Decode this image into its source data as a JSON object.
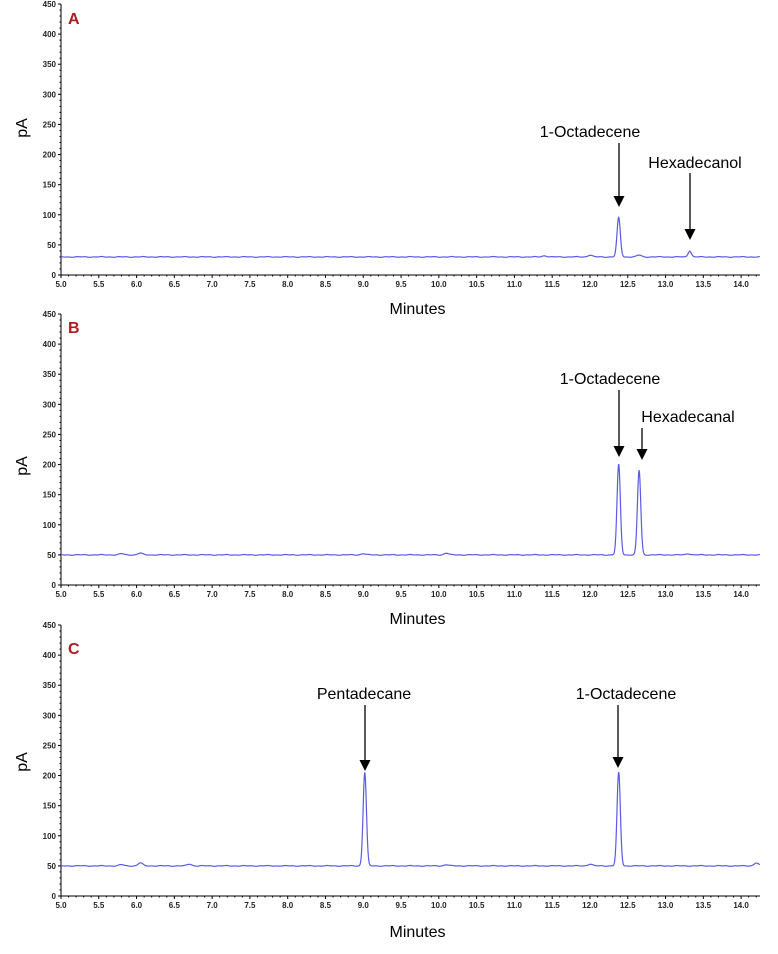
{
  "colors": {
    "trace": "#5a5ae6",
    "axis": "#000000",
    "panel_letter": "#b01c1c"
  },
  "chart_data": [
    {
      "type": "line",
      "panel_label": "A",
      "xlabel": "Minutes",
      "ylabel": "pA",
      "xlim": [
        5.0,
        14.25
      ],
      "ylim": [
        0,
        450
      ],
      "xticks": [
        "5.0",
        "5.5",
        "6.0",
        "6.5",
        "7.0",
        "7.5",
        "8.0",
        "8.5",
        "9.0",
        "9.5",
        "10.0",
        "10.5",
        "11.0",
        "11.5",
        "12.0",
        "12.5",
        "13.0",
        "13.5",
        "14.0"
      ],
      "yticks": [
        "0",
        "50",
        "100",
        "150",
        "200",
        "250",
        "300",
        "350",
        "400",
        "450"
      ],
      "baseline": 30,
      "peaks": [
        {
          "x": 12.38,
          "y": 95,
          "label": "1-Octadecene"
        },
        {
          "x": 13.32,
          "y": 40,
          "label": "Hexadecanol"
        }
      ],
      "minor_peaks": [
        {
          "x": 11.4,
          "y": 32
        },
        {
          "x": 12.0,
          "y": 33
        },
        {
          "x": 12.65,
          "y": 33
        }
      ]
    },
    {
      "type": "line",
      "panel_label": "B",
      "xlabel": "Minutes",
      "ylabel": "pA",
      "xlim": [
        5.0,
        14.25
      ],
      "ylim": [
        0,
        450
      ],
      "xticks": [
        "5.0",
        "5.5",
        "6.0",
        "6.5",
        "7.0",
        "7.5",
        "8.0",
        "8.5",
        "9.0",
        "9.5",
        "10.0",
        "10.5",
        "11.0",
        "11.5",
        "12.0",
        "12.5",
        "13.0",
        "13.5",
        "14.0"
      ],
      "yticks": [
        "0",
        "50",
        "100",
        "150",
        "200",
        "250",
        "300",
        "350",
        "400",
        "450"
      ],
      "baseline": 50,
      "peaks": [
        {
          "x": 12.38,
          "y": 200,
          "label": "1-Octadecene"
        },
        {
          "x": 12.65,
          "y": 190,
          "label": "Hexadecanal"
        }
      ],
      "minor_peaks": [
        {
          "x": 5.8,
          "y": 52
        },
        {
          "x": 6.05,
          "y": 53
        },
        {
          "x": 9.0,
          "y": 52
        },
        {
          "x": 10.1,
          "y": 53
        },
        {
          "x": 13.3,
          "y": 52
        }
      ]
    },
    {
      "type": "line",
      "panel_label": "C",
      "xlabel": "Minutes",
      "ylabel": "pA",
      "xlim": [
        5.0,
        14.25
      ],
      "ylim": [
        0,
        450
      ],
      "xticks": [
        "5.0",
        "5.5",
        "6.0",
        "6.5",
        "7.0",
        "7.5",
        "8.0",
        "8.5",
        "9.0",
        "9.5",
        "10.0",
        "10.5",
        "11.0",
        "11.5",
        "12.0",
        "12.5",
        "13.0",
        "13.5",
        "14.0"
      ],
      "yticks": [
        "0",
        "50",
        "100",
        "150",
        "200",
        "250",
        "300",
        "350",
        "400",
        "450"
      ],
      "baseline": 50,
      "peaks": [
        {
          "x": 9.02,
          "y": 205,
          "label": "Pentadecane"
        },
        {
          "x": 12.38,
          "y": 205,
          "label": "1-Octadecene"
        }
      ],
      "minor_peaks": [
        {
          "x": 5.8,
          "y": 52
        },
        {
          "x": 6.05,
          "y": 55
        },
        {
          "x": 6.7,
          "y": 53
        },
        {
          "x": 10.1,
          "y": 52
        },
        {
          "x": 12.0,
          "y": 53
        },
        {
          "x": 14.2,
          "y": 55
        }
      ]
    }
  ]
}
